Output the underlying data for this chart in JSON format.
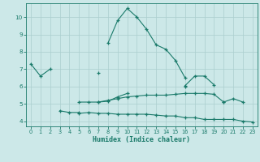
{
  "title": "",
  "xlabel": "Humidex (Indice chaleur)",
  "x": [
    0,
    1,
    2,
    3,
    4,
    5,
    6,
    7,
    8,
    9,
    10,
    11,
    12,
    13,
    14,
    15,
    16,
    17,
    18,
    19,
    20,
    21,
    22,
    23
  ],
  "line1": [
    7.3,
    6.6,
    7.0,
    null,
    null,
    null,
    null,
    null,
    8.5,
    9.8,
    10.5,
    10.0,
    9.3,
    8.4,
    8.15,
    7.5,
    6.5,
    null,
    null,
    null,
    null,
    null,
    null,
    null
  ],
  "line2": [
    null,
    null,
    null,
    null,
    null,
    null,
    null,
    6.8,
    null,
    null,
    null,
    null,
    null,
    null,
    null,
    null,
    6.05,
    6.6,
    6.6,
    6.1,
    null,
    null,
    null,
    null
  ],
  "line3": [
    null,
    null,
    null,
    4.6,
    4.5,
    4.5,
    null,
    5.1,
    5.15,
    5.4,
    5.6,
    null,
    null,
    null,
    null,
    null,
    6.0,
    null,
    null,
    null,
    5.1,
    5.3,
    5.1,
    null
  ],
  "line4": [
    null,
    null,
    null,
    null,
    null,
    5.1,
    5.1,
    5.1,
    5.2,
    5.3,
    5.4,
    5.45,
    5.5,
    5.5,
    5.5,
    5.55,
    5.6,
    5.6,
    5.6,
    5.55,
    5.1,
    null,
    null,
    null
  ],
  "line5": [
    null,
    null,
    null,
    null,
    null,
    4.45,
    4.5,
    4.45,
    4.45,
    4.4,
    4.4,
    4.4,
    4.4,
    4.35,
    4.3,
    4.3,
    4.2,
    4.2,
    4.1,
    4.1,
    4.1,
    4.1,
    4.0,
    3.95
  ],
  "color": "#1a7a6a",
  "bg_color": "#cce8e8",
  "grid_color": "#aacece",
  "xlim": [
    -0.5,
    23.5
  ],
  "ylim": [
    3.7,
    10.8
  ],
  "yticks": [
    4,
    5,
    6,
    7,
    8,
    9,
    10
  ],
  "xticks": [
    0,
    1,
    2,
    3,
    4,
    5,
    6,
    7,
    8,
    9,
    10,
    11,
    12,
    13,
    14,
    15,
    16,
    17,
    18,
    19,
    20,
    21,
    22,
    23
  ]
}
